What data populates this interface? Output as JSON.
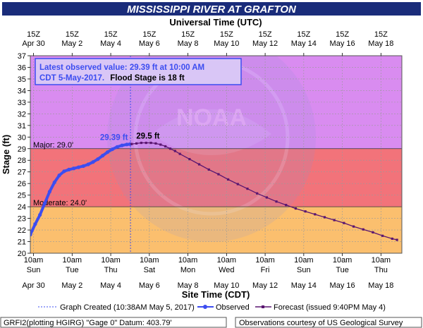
{
  "title": "MISSISSIPPI RIVER AT GRAFTON",
  "top_axis_title": "Universal Time (UTC)",
  "bottom_axis_title": "Site Time (CDT)",
  "y_axis_title": "Stage (ft)",
  "info_box": {
    "line1": "Latest observed value: 29.39 ft at 10:00 AM",
    "line2a": "CDT 5-May-2017.",
    "line2b": "Flood Stage is 18 ft"
  },
  "watermark_text": "NOAA",
  "seal_lettering": "NATIONAL OCEANIC AND ATMOSPHERIC ADMINISTRATION · U.S. DEPARTMENT OF COMMERCE",
  "legend": {
    "created": "Graph Created (10:38AM May 5, 2017)",
    "observed": "Observed",
    "forecast": "Forecast (issued 9:40PM May 4)"
  },
  "footer": {
    "left": "GRFI2(plotting HGIRG) \"Gage 0\" Datum: 403.79'",
    "right": "Observations courtesy of US Geological Survey"
  },
  "colors": {
    "title_bg": "#1a2c7a",
    "major": "#d98cf0",
    "moderate_band": "#f2737a",
    "minor_band": "#fbbf6e",
    "normal": "#ffffff",
    "observed": "#3c4df0",
    "forecast": "#5a1670"
  },
  "chart_data": {
    "type": "line",
    "title": "MISSISSIPPI RIVER AT GRAFTON",
    "xlabel": "Site Time (CDT)",
    "ylabel": "Stage (ft)",
    "x_unit": "days from Apr 30 00:00 CDT",
    "xlim": [
      0.25,
      19.5
    ],
    "ylim": [
      20,
      37
    ],
    "grid": true,
    "y_ticks": [
      20,
      21,
      22,
      23,
      24,
      25,
      26,
      27,
      28,
      29,
      30,
      31,
      32,
      33,
      34,
      35,
      36,
      37
    ],
    "bottom_ticks": [
      {
        "x": 0.417,
        "time": "10am",
        "day": "Sun",
        "date": "Apr 30"
      },
      {
        "x": 2.417,
        "time": "10am",
        "day": "Tue",
        "date": "May 2"
      },
      {
        "x": 4.417,
        "time": "10am",
        "day": "Thu",
        "date": "May 4"
      },
      {
        "x": 6.417,
        "time": "10am",
        "day": "Sat",
        "date": "May 6"
      },
      {
        "x": 8.417,
        "time": "10am",
        "day": "Mon",
        "date": "May 8"
      },
      {
        "x": 10.417,
        "time": "10am",
        "day": "Wed",
        "date": "May 10"
      },
      {
        "x": 12.417,
        "time": "10am",
        "day": "Fri",
        "date": "May 12"
      },
      {
        "x": 14.417,
        "time": "10am",
        "day": "Sun",
        "date": "May 14"
      },
      {
        "x": 16.417,
        "time": "10am",
        "day": "Tue",
        "date": "May 16"
      },
      {
        "x": 18.417,
        "time": "10am",
        "day": "Thu",
        "date": "May 18"
      }
    ],
    "top_ticks": [
      {
        "x": 0.417,
        "time": "15Z",
        "date": "Apr 30"
      },
      {
        "x": 2.417,
        "time": "15Z",
        "date": "May 2"
      },
      {
        "x": 4.417,
        "time": "15Z",
        "date": "May 4"
      },
      {
        "x": 6.417,
        "time": "15Z",
        "date": "May 6"
      },
      {
        "x": 8.417,
        "time": "15Z",
        "date": "May 8"
      },
      {
        "x": 10.417,
        "time": "15Z",
        "date": "May 10"
      },
      {
        "x": 12.417,
        "time": "15Z",
        "date": "May 12"
      },
      {
        "x": 14.417,
        "time": "15Z",
        "date": "May 14"
      },
      {
        "x": 16.417,
        "time": "15Z",
        "date": "May 16"
      },
      {
        "x": 18.417,
        "time": "15Z",
        "date": "May 18"
      }
    ],
    "flood_categories": [
      {
        "name": "Major",
        "label": "Major: 29.0'",
        "value": 29.0,
        "color": "#d98cf0"
      },
      {
        "name": "Moderate",
        "label": "Moderate: 24.0'",
        "value": 24.0,
        "color": "#f2737a"
      },
      {
        "name": "Minor",
        "value": 18.0,
        "color": "#fbbf6e"
      }
    ],
    "graph_created_x": 5.44,
    "series": [
      {
        "name": "Observed",
        "color": "#3c4df0",
        "x": [
          0.25,
          0.5,
          0.75,
          1.0,
          1.25,
          1.5,
          1.75,
          2.0,
          2.25,
          2.5,
          2.75,
          3.0,
          3.25,
          3.5,
          3.75,
          4.0,
          4.25,
          4.5,
          4.75,
          5.0,
          5.25,
          5.417
        ],
        "y": [
          21.6,
          22.5,
          23.3,
          24.3,
          25.3,
          26.1,
          26.7,
          27.05,
          27.2,
          27.3,
          27.4,
          27.5,
          27.65,
          27.85,
          28.1,
          28.4,
          28.7,
          28.95,
          29.15,
          29.28,
          29.36,
          29.39
        ]
      },
      {
        "name": "Forecast",
        "color": "#5a1670",
        "x": [
          5.5,
          5.75,
          6.0,
          6.25,
          6.5,
          6.75,
          7.0,
          7.25,
          7.5,
          7.75,
          8.0,
          8.5,
          9.0,
          9.5,
          10.0,
          10.5,
          11.0,
          11.5,
          12.0,
          12.5,
          13.0,
          13.5,
          14.0,
          14.5,
          15.0,
          15.5,
          16.0,
          16.5,
          17.0,
          17.5,
          18.0,
          18.5,
          19.0,
          19.25
        ],
        "y": [
          29.4,
          29.45,
          29.5,
          29.5,
          29.5,
          29.45,
          29.35,
          29.2,
          29.0,
          28.8,
          28.55,
          28.1,
          27.65,
          27.2,
          26.8,
          26.35,
          25.95,
          25.55,
          25.15,
          24.8,
          24.45,
          24.15,
          23.85,
          23.6,
          23.35,
          23.1,
          22.85,
          22.6,
          22.3,
          22.05,
          21.8,
          21.5,
          21.25,
          21.15
        ]
      }
    ],
    "annotations": [
      {
        "text": "29.39 ft",
        "x": 5.417,
        "y": 29.39,
        "series": "Observed"
      },
      {
        "text": "29.5 ft",
        "x": 6.25,
        "y": 29.5,
        "series": "Forecast"
      }
    ]
  }
}
